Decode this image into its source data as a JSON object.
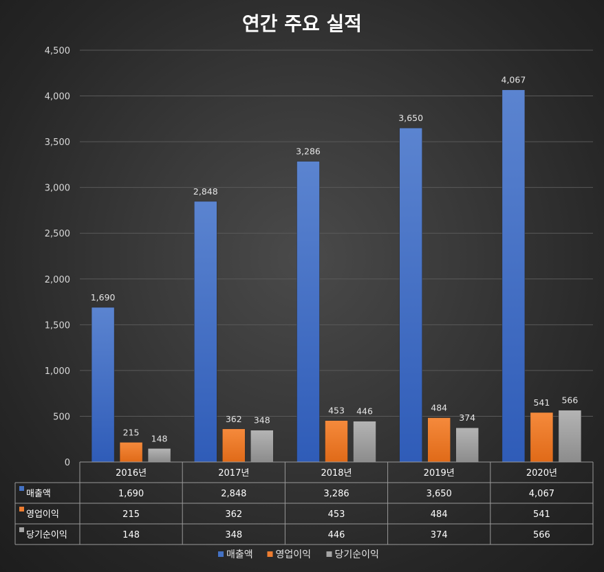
{
  "chart_data": {
    "type": "bar",
    "title": "연간 주요 실적",
    "categories": [
      "2016년",
      "2017년",
      "2018년",
      "2019년",
      "2020년"
    ],
    "series": [
      {
        "name": "매출액",
        "values": [
          1690,
          2848,
          3286,
          3650,
          4067
        ],
        "labels": [
          "1,690",
          "2,848",
          "3,286",
          "3,650",
          "4,067"
        ],
        "color": "#4472c4"
      },
      {
        "name": "영업이익",
        "values": [
          215,
          362,
          453,
          484,
          541
        ],
        "labels": [
          "215",
          "362",
          "453",
          "484",
          "541"
        ],
        "color": "#ed7d31"
      },
      {
        "name": "당기순이익",
        "values": [
          148,
          348,
          446,
          374,
          566
        ],
        "labels": [
          "148",
          "348",
          "446",
          "374",
          "566"
        ],
        "color": "#a5a5a5"
      }
    ],
    "yticks": [
      "0",
      "500",
      "1,000",
      "1,500",
      "2,000",
      "2,500",
      "3,000",
      "3,500",
      "4,000",
      "4,500"
    ],
    "ylim": [
      0,
      4500
    ],
    "ystep": 500,
    "grid": true,
    "data_table": true,
    "legend_position": "bottom"
  }
}
